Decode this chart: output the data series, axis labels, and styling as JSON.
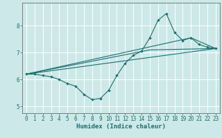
{
  "xlabel": "Humidex (Indice chaleur)",
  "bg_color": "#cde8e8",
  "grid_color": "#ffffff",
  "line_color": "#1a6e6e",
  "xlim": [
    -0.5,
    23.5
  ],
  "ylim": [
    4.75,
    8.85
  ],
  "xticks": [
    0,
    1,
    2,
    3,
    4,
    5,
    6,
    7,
    8,
    9,
    10,
    11,
    12,
    13,
    14,
    15,
    16,
    17,
    18,
    19,
    20,
    21,
    22,
    23
  ],
  "yticks": [
    5,
    6,
    7,
    8
  ],
  "line1_x": [
    0,
    1,
    2,
    3,
    4,
    5,
    6,
    7,
    8,
    9,
    10,
    11,
    12,
    13,
    14,
    15,
    16,
    17,
    18,
    19,
    20,
    21,
    22,
    23
  ],
  "line1_y": [
    6.2,
    6.2,
    6.15,
    6.1,
    6.0,
    5.85,
    5.75,
    5.45,
    5.25,
    5.3,
    5.6,
    6.15,
    6.6,
    6.9,
    7.05,
    7.55,
    8.2,
    8.45,
    7.75,
    7.45,
    7.55,
    7.3,
    7.2,
    7.15
  ],
  "line2_x": [
    0,
    23
  ],
  "line2_y": [
    6.2,
    7.15
  ],
  "line3_x": [
    0,
    15,
    23
  ],
  "line3_y": [
    6.2,
    7.1,
    7.15
  ],
  "line4_x": [
    0,
    20,
    23
  ],
  "line4_y": [
    6.2,
    7.55,
    7.15
  ],
  "tick_fontsize": 5.5,
  "xlabel_fontsize": 6.5
}
